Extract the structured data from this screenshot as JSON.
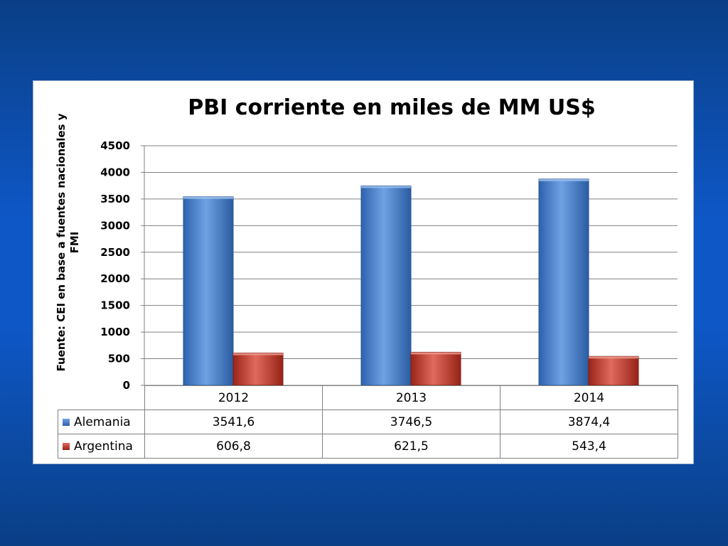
{
  "chart_data": {
    "type": "bar",
    "title": "PBI corriente en miles de MM US$",
    "ylabel": "Fuente: CEI en base a fuentes nacionales y FMI",
    "ylabel_lines": [
      "Fuente: CEI en base a fuentes nacionales y",
      "FMI"
    ],
    "categories": [
      "2012",
      "2013",
      "2014"
    ],
    "ylim": [
      0,
      4500
    ],
    "yticks": [
      0,
      500,
      1000,
      1500,
      2000,
      2500,
      3000,
      3500,
      4000,
      4500
    ],
    "grid": true,
    "legend_placement": "data-table",
    "series": [
      {
        "name": "Alemania",
        "values": [
          3541.6,
          3746.5,
          3874.4
        ],
        "labels": [
          "3541,6",
          "3746,5",
          "3874,4"
        ],
        "color": "#4a86d4"
      },
      {
        "name": "Argentina",
        "values": [
          606.8,
          621.5,
          543.4
        ],
        "labels": [
          "606,8",
          "621,5",
          "543,4"
        ],
        "color": "#c0392b"
      }
    ]
  },
  "colors": {
    "background": "#0e57c6",
    "panel": "#ffffff",
    "grid": "#808080"
  }
}
